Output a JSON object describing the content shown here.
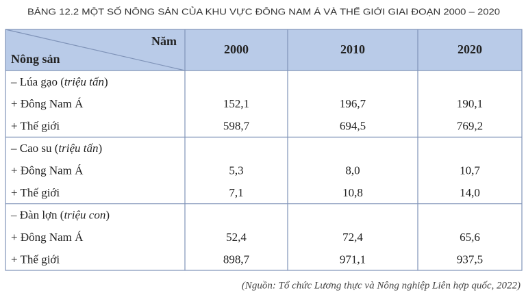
{
  "title": "BẢNG 12.2  MỘT SỐ NÔNG SẢN CỦA KHU VỰC ĐÔNG NAM Á VÀ THẾ GIỚI GIAI ĐOẠN 2000 – 2020",
  "table": {
    "corner_top": "Năm",
    "corner_bottom": "Nông sản",
    "columns": [
      "2000",
      "2010",
      "2020"
    ],
    "groups": [
      {
        "label": "– Lúa gạo (triệu tấn)",
        "rows": [
          {
            "label": "+ Đông Nam Á",
            "values": [
              "152,1",
              "196,7",
              "190,1"
            ]
          },
          {
            "label": "+ Thế giới",
            "values": [
              "598,7",
              "694,5",
              "769,2"
            ]
          }
        ]
      },
      {
        "label": "– Cao su (triệu tấn)",
        "rows": [
          {
            "label": "+ Đông Nam Á",
            "values": [
              "5,3",
              "8,0",
              "10,7"
            ]
          },
          {
            "label": "+ Thế giới",
            "values": [
              "7,1",
              "10,8",
              "14,0"
            ]
          }
        ]
      },
      {
        "label": "– Đàn lợn (triệu con)",
        "rows": [
          {
            "label": "+ Đông Nam Á",
            "values": [
              "52,4",
              "72,4",
              "65,6"
            ]
          },
          {
            "label": "+ Thế giới",
            "values": [
              "898,7",
              "971,1",
              "937,5"
            ]
          }
        ]
      }
    ]
  },
  "source": "(Nguồn: Tổ chức Lương thực và Nông nghiệp Liên hợp quốc, 2022)"
}
